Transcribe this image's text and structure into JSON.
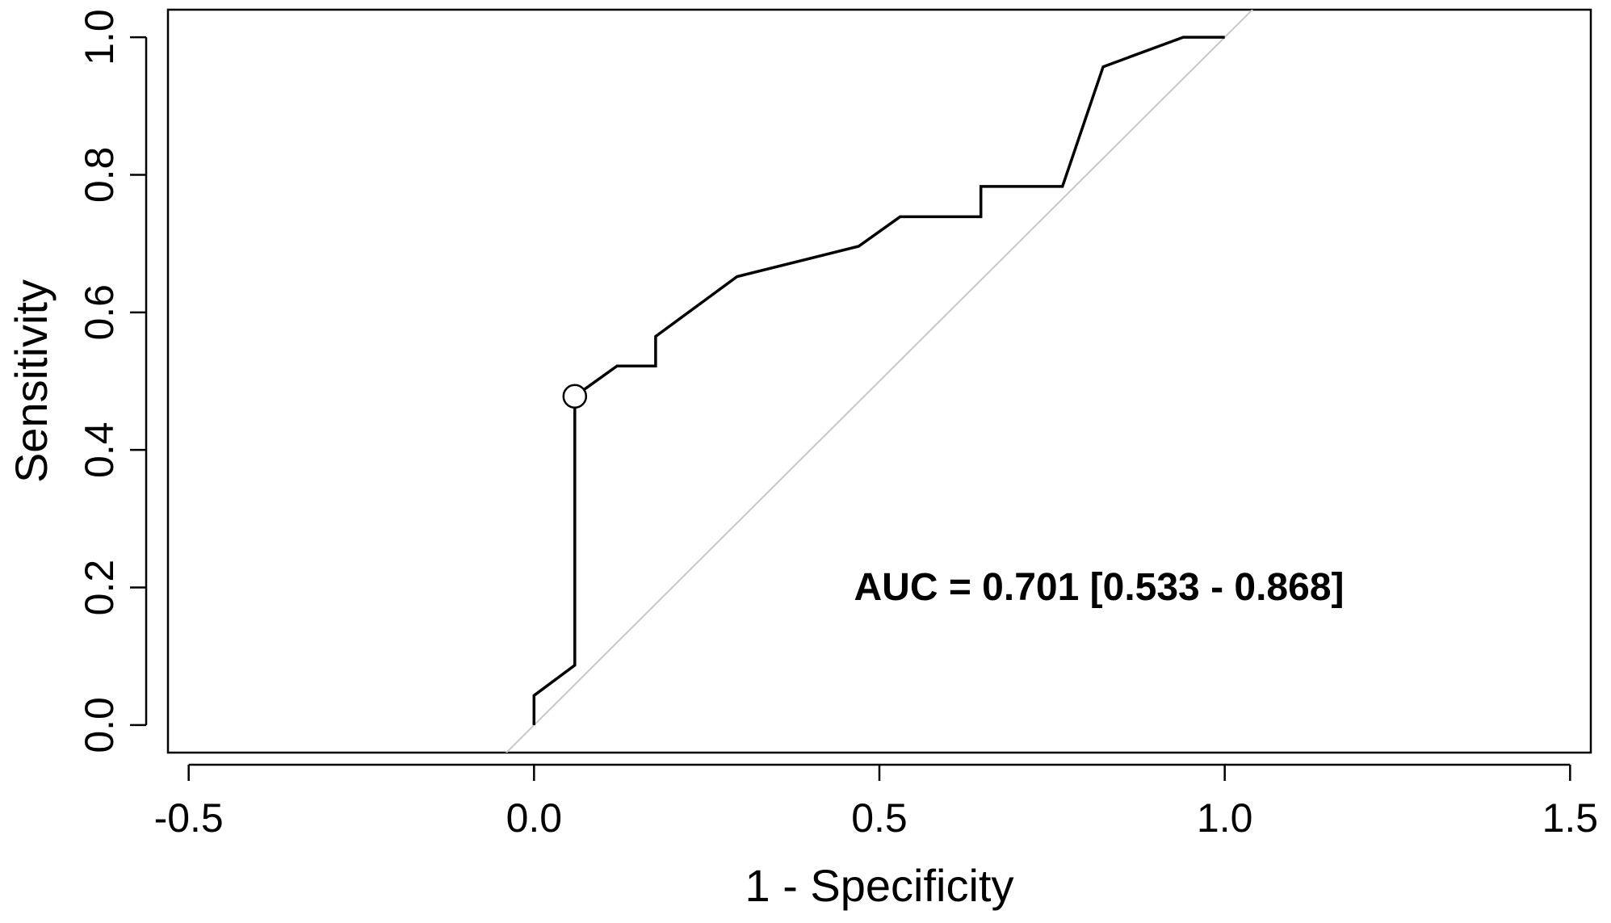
{
  "chart_data": {
    "type": "line",
    "title": "",
    "xlabel": "1 - Specificity",
    "ylabel": "Sensitivity",
    "xlim": [
      -0.53,
      1.53
    ],
    "ylim": [
      -0.04,
      1.04
    ],
    "x_ticks": [
      -0.5,
      0.0,
      0.5,
      1.0,
      1.5
    ],
    "x_tick_labels": [
      "-0.5",
      "0.0",
      "0.5",
      "1.0",
      "1.5"
    ],
    "y_ticks": [
      0.0,
      0.2,
      0.4,
      0.6,
      0.8,
      1.0
    ],
    "y_tick_labels": [
      "0.0",
      "0.2",
      "0.4",
      "0.6",
      "0.8",
      "1.0"
    ],
    "grid": false,
    "legend": "none",
    "annotation": "AUC = 0.701 [0.533 - 0.868]",
    "series": [
      {
        "x": [
          0.0,
          0.0,
          0.059,
          0.059,
          0.12,
          0.176,
          0.176,
          0.294,
          0.47,
          0.53,
          0.647,
          0.647,
          0.765,
          0.824,
          0.94,
          1.0
        ],
        "y": [
          0.0,
          0.043,
          0.087,
          0.478,
          0.522,
          0.522,
          0.565,
          0.652,
          0.696,
          0.739,
          0.739,
          0.783,
          0.783,
          0.957,
          1.0,
          1.0
        ],
        "color": "#000000"
      }
    ],
    "reference_line": {
      "x": [
        -0.05,
        1.05
      ],
      "y": [
        -0.05,
        1.05
      ],
      "color": "#c8c8c8"
    },
    "highlight_point": {
      "x": 0.059,
      "y": 0.478
    }
  }
}
